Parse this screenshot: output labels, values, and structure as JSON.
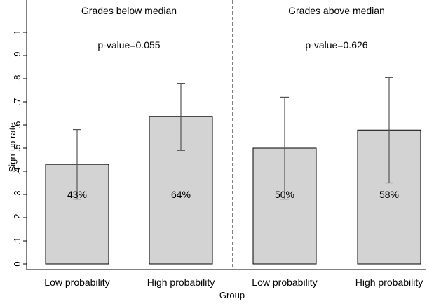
{
  "chart_data": {
    "type": "bar",
    "xlabel": "Group",
    "ylabel": "Sign-up rate",
    "ylim": [
      0,
      1.0
    ],
    "yticks": [
      0,
      0.1,
      0.2,
      0.3,
      0.4,
      0.5,
      0.6,
      0.7,
      0.8,
      0.9,
      1.0
    ],
    "ytick_labels": [
      "0",
      ".1",
      ".2",
      ".3",
      ".4",
      ".5",
      ".6",
      ".7",
      ".8",
      ".9",
      "1"
    ],
    "categories": [
      "Low probability",
      "High probability",
      "Low probability",
      "High probability"
    ],
    "panels": [
      {
        "title": "Grades below median",
        "pvalue_text": "p-value=0.055",
        "bars": [
          {
            "category": "Low probability",
            "value": 0.43,
            "ci_low": 0.28,
            "ci_high": 0.58,
            "label": "43%"
          },
          {
            "category": "High probability",
            "value": 0.637,
            "ci_low": 0.49,
            "ci_high": 0.78,
            "label": "64%"
          }
        ]
      },
      {
        "title": "Grades above median",
        "pvalue_text": "p-value=0.626",
        "bars": [
          {
            "category": "Low probability",
            "value": 0.5,
            "ci_low": 0.28,
            "ci_high": 0.72,
            "label": "50%"
          },
          {
            "category": "High probability",
            "value": 0.578,
            "ci_low": 0.35,
            "ci_high": 0.805,
            "label": "58%"
          }
        ]
      }
    ],
    "colors": {
      "bar_fill": "#d3d3d3",
      "bar_edge": "#000000",
      "error_bar": "#555555"
    },
    "grid": false,
    "legend": "none"
  }
}
